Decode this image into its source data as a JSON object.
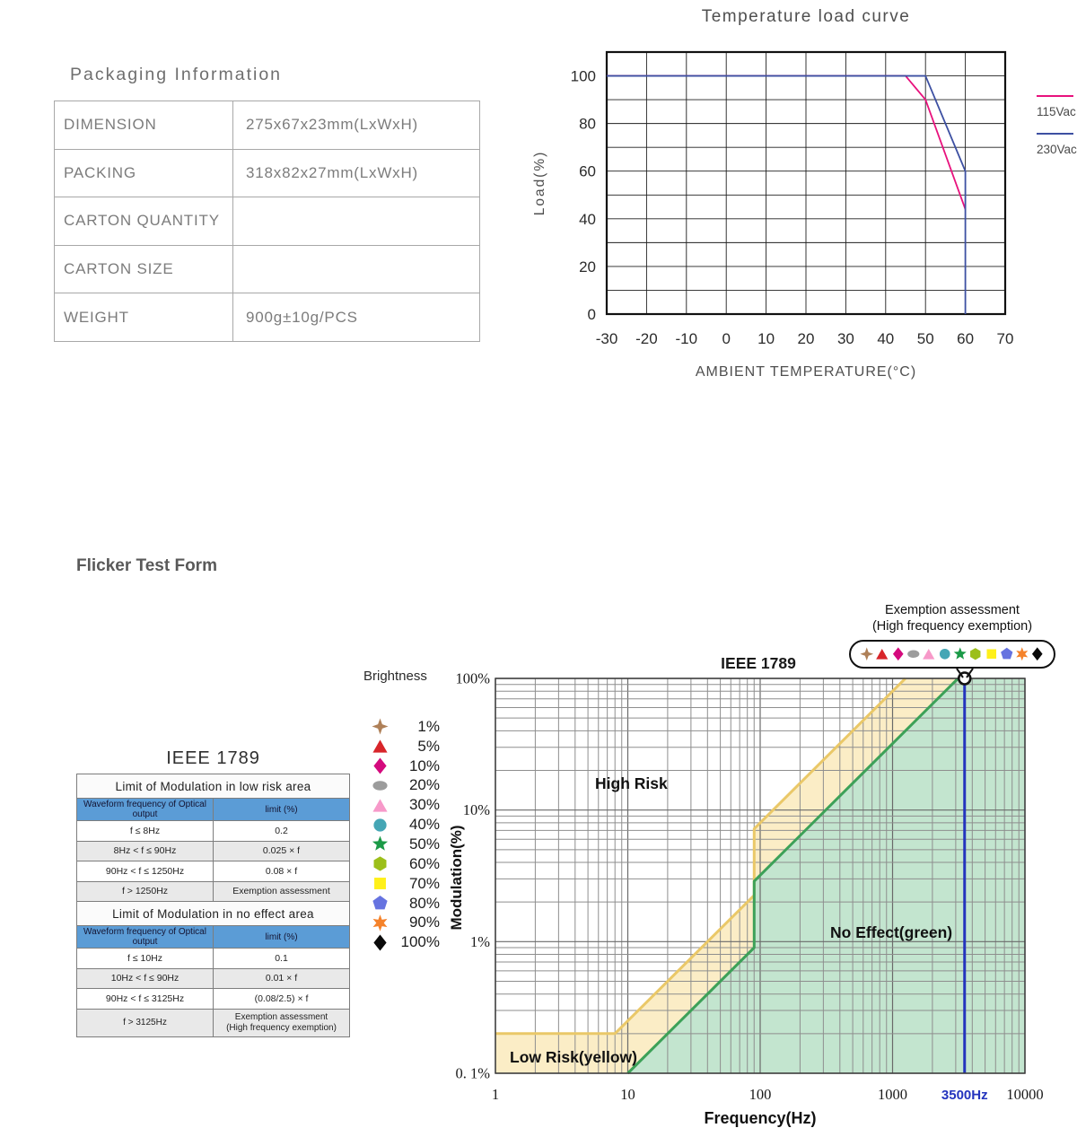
{
  "packaging": {
    "title": "Packaging Information",
    "rows": [
      {
        "label": "DIMENSION",
        "value": "275x67x23mm(LxWxH)"
      },
      {
        "label": "PACKING",
        "value": "318x82x27mm(LxWxH)"
      },
      {
        "label": "CARTON QUANTITY",
        "value": ""
      },
      {
        "label": "CARTON SIZE",
        "value": ""
      },
      {
        "label": "WEIGHT",
        "value": "900g±10g/PCS"
      }
    ]
  },
  "flicker_heading": "Flicker Test Form",
  "ieee_table": {
    "title": "IEEE 1789",
    "sections": [
      {
        "heading": "Limit of Modulation in low risk area",
        "columns": [
          "Waveform frequency of Optical output",
          "limit (%)"
        ],
        "rows": [
          [
            "f ≤ 8Hz",
            "0.2"
          ],
          [
            "8Hz < f ≤ 90Hz",
            "0.025 × f"
          ],
          [
            "90Hz < f ≤ 1250Hz",
            "0.08 × f"
          ],
          [
            "f > 1250Hz",
            "Exemption assessment"
          ]
        ]
      },
      {
        "heading": "Limit of Modulation in no effect area",
        "columns": [
          "Waveform frequency of Optical output",
          "limit (%)"
        ],
        "rows": [
          [
            "f ≤ 10Hz",
            "0.1"
          ],
          [
            "10Hz < f ≤ 90Hz",
            "0.01 × f"
          ],
          [
            "90Hz < f ≤ 3125Hz",
            "(0.08/2.5) × f"
          ],
          [
            "f > 3125Hz",
            "Exemption assessment\n(High frequency exemption)"
          ]
        ]
      }
    ]
  },
  "brightness_legend": {
    "title": "Brightness",
    "items": [
      {
        "shape": "star4",
        "color": "#AF8058",
        "label": "1%"
      },
      {
        "shape": "triangle",
        "color": "#D8252A",
        "label": "5%"
      },
      {
        "shape": "diamond",
        "color": "#D40A7D",
        "label": "10%"
      },
      {
        "shape": "ellipse",
        "color": "#9C9C9C",
        "label": "20%"
      },
      {
        "shape": "triangle",
        "color": "#F799C9",
        "label": "30%"
      },
      {
        "shape": "circle",
        "color": "#45A6B5",
        "label": "40%"
      },
      {
        "shape": "star5",
        "color": "#1B9A47",
        "label": "50%"
      },
      {
        "shape": "hexagon",
        "color": "#9CBF1A",
        "label": "60%"
      },
      {
        "shape": "square",
        "color": "#FFF01A",
        "label": "70%"
      },
      {
        "shape": "pentagon",
        "color": "#6673E0",
        "label": "80%"
      },
      {
        "shape": "star6",
        "color": "#F5822A",
        "label": "90%"
      },
      {
        "shape": "diamond",
        "color": "#0A0A0A",
        "label": "100%"
      }
    ]
  },
  "exemption_callout": {
    "line1": "Exemption assessment",
    "line2": "(High frequency exemption)"
  },
  "chart_data": [
    {
      "id": "temperature_load_curve",
      "type": "line",
      "title": "Temperature load curve",
      "xlabel": "AMBIENT TEMPERATURE(°C)",
      "ylabel": "Load(%)",
      "xlim": [
        -30,
        70
      ],
      "ylim": [
        0,
        110
      ],
      "grid": true,
      "grid_step": [
        10,
        10
      ],
      "x_ticks": [
        -30,
        -20,
        -10,
        0,
        10,
        20,
        30,
        40,
        50,
        60,
        70
      ],
      "y_ticks": [
        0,
        20,
        40,
        60,
        80,
        100
      ],
      "legend_position": "right",
      "series": [
        {
          "name": "115Vac",
          "color": "#E8127D",
          "points": [
            [
              -30,
              100
            ],
            [
              45,
              100
            ],
            [
              50,
              90
            ],
            [
              60,
              44
            ]
          ]
        },
        {
          "name": "230Vac",
          "color": "#3D50A2",
          "points": [
            [
              -30,
              100
            ],
            [
              50,
              100
            ],
            [
              60,
              60
            ],
            [
              60,
              0
            ]
          ]
        }
      ]
    },
    {
      "id": "ieee1789_flicker",
      "type": "area",
      "title": "IEEE 1789",
      "xlabel": "Frequency(Hz)",
      "ylabel": "Modulation(%)",
      "x_scale": "log",
      "y_scale": "log",
      "xlim": [
        1,
        10000
      ],
      "ylim": [
        0.1,
        100
      ],
      "grid": true,
      "x_tick_labels": [
        "1",
        "10",
        "100",
        "1000",
        "10000"
      ],
      "y_tick_labels": [
        "100%",
        "10%",
        "1%",
        "0. 1%"
      ],
      "regions": [
        {
          "name": "low_risk_boundary",
          "label": "Low Risk(yellow)",
          "line_color": "#EAC868",
          "fill_color": "#FBEDC6",
          "points": [
            [
              1,
              0.2
            ],
            [
              8,
              0.2
            ],
            [
              90,
              2.25
            ],
            [
              90,
              7.2
            ],
            [
              1250,
              100
            ]
          ]
        },
        {
          "name": "no_effect_boundary",
          "label": "No Effect(green)",
          "line_color": "#3DA158",
          "fill_color": "#C3E5CF",
          "points": [
            [
              10,
              0.1
            ],
            [
              90,
              0.9
            ],
            [
              90,
              2.88
            ],
            [
              3125,
              100
            ]
          ]
        }
      ],
      "labels": {
        "high_risk": "High Risk",
        "no_effect": "No Effect(green)",
        "low_risk": "Low Risk(yellow)"
      },
      "marker_line": {
        "x": 3500,
        "label": "3500Hz",
        "color": "#2434BE"
      }
    }
  ]
}
